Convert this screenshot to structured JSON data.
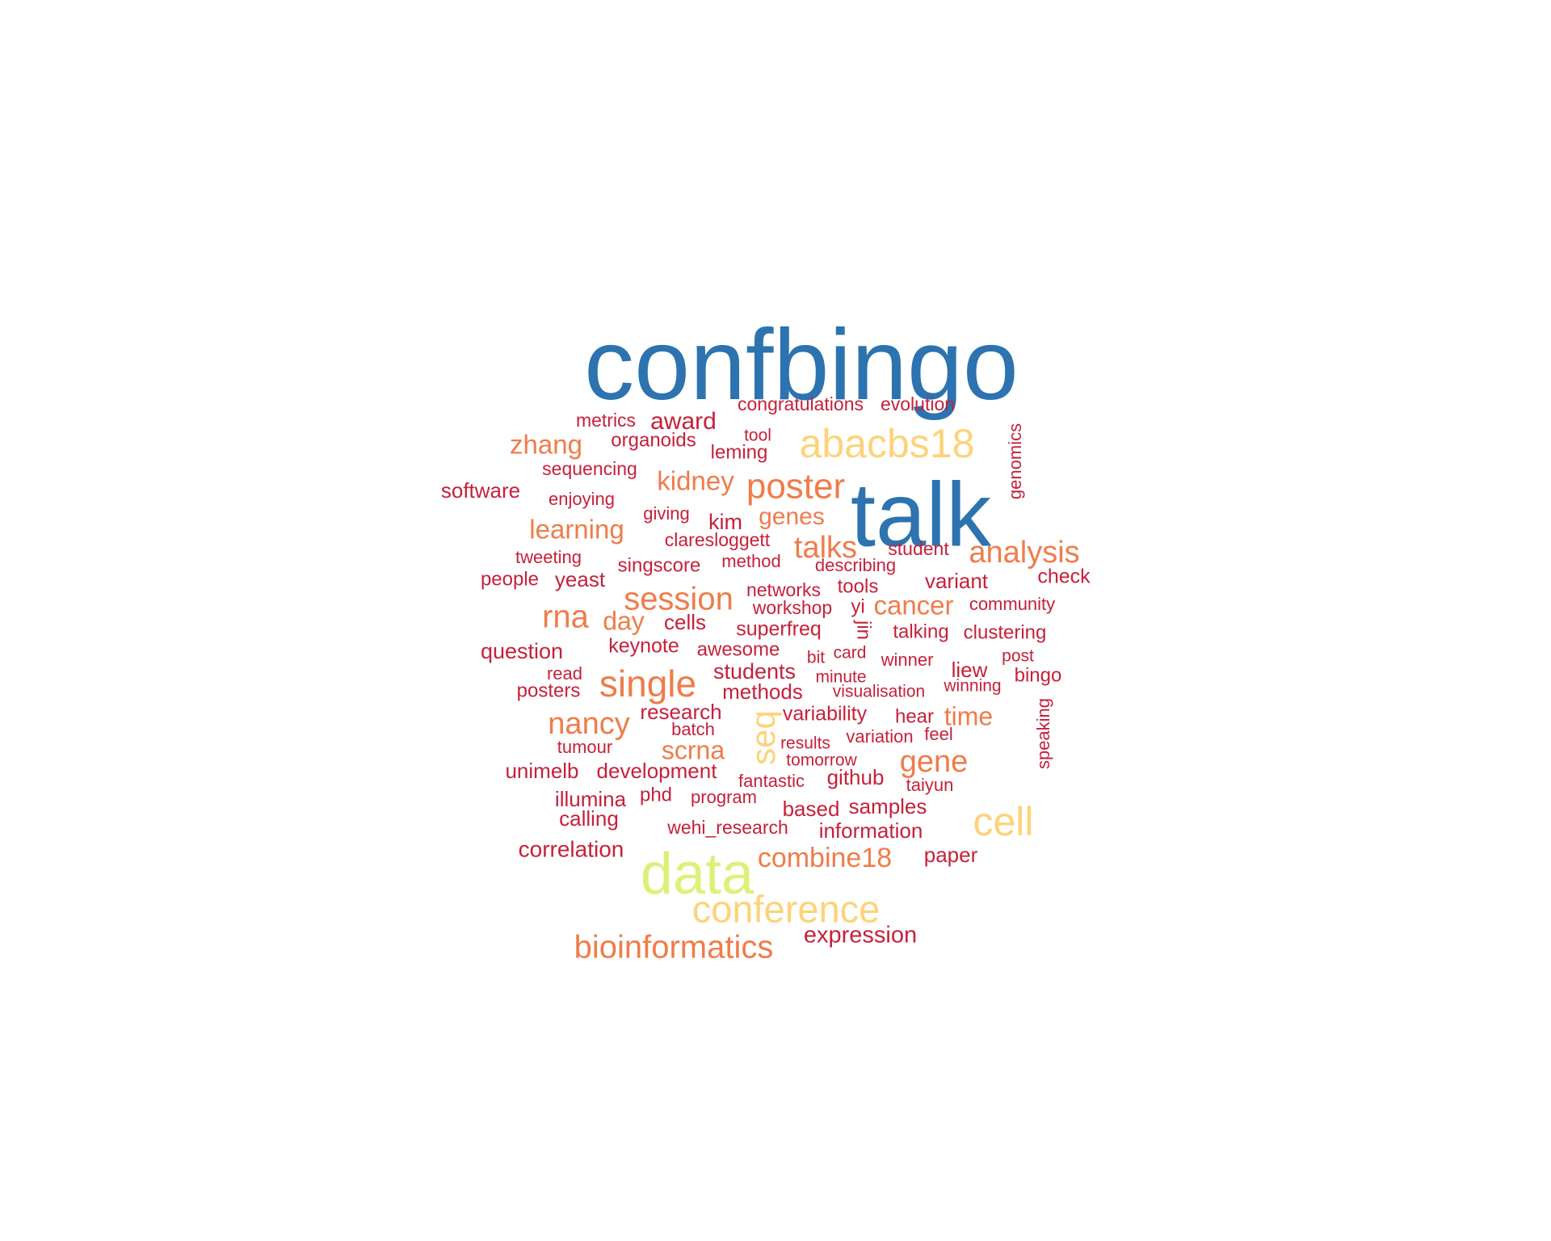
{
  "palette": {
    "blue": "#2c73b0",
    "darkred": "#c7203a",
    "orange": "#f07c4a",
    "peach": "#fdd37a",
    "lime": "#dff07a"
  },
  "words": [
    {
      "id": "confbingo",
      "text": "confbingo",
      "color": "blue"
    },
    {
      "id": "talk",
      "text": "talk",
      "color": "blue"
    },
    {
      "id": "data",
      "text": "data",
      "color": "lime"
    },
    {
      "id": "abacbs18",
      "text": "abacbs18",
      "color": "peach"
    },
    {
      "id": "conference",
      "text": "conference",
      "color": "peach"
    },
    {
      "id": "cell",
      "text": "cell",
      "color": "peach"
    },
    {
      "id": "seq",
      "text": "seq",
      "color": "peach"
    },
    {
      "id": "poster",
      "text": "poster",
      "color": "orange"
    },
    {
      "id": "single",
      "text": "single",
      "color": "orange"
    },
    {
      "id": "session",
      "text": "session",
      "color": "orange"
    },
    {
      "id": "analysis",
      "text": "analysis",
      "color": "orange"
    },
    {
      "id": "bioinformatics",
      "text": "bioinformatics",
      "color": "orange"
    },
    {
      "id": "rna",
      "text": "rna",
      "color": "orange"
    },
    {
      "id": "nancy",
      "text": "nancy",
      "color": "orange"
    },
    {
      "id": "gene",
      "text": "gene",
      "color": "orange"
    },
    {
      "id": "combine18",
      "text": "combine18",
      "color": "orange"
    },
    {
      "id": "talks",
      "text": "talks",
      "color": "orange"
    },
    {
      "id": "kidney",
      "text": "kidney",
      "color": "orange"
    },
    {
      "id": "zhang",
      "text": "zhang",
      "color": "orange"
    },
    {
      "id": "learning",
      "text": "learning",
      "color": "orange"
    },
    {
      "id": "cancer",
      "text": "cancer",
      "color": "orange"
    },
    {
      "id": "genes",
      "text": "genes",
      "color": "orange"
    },
    {
      "id": "day",
      "text": "day",
      "color": "orange"
    },
    {
      "id": "scrna",
      "text": "scrna",
      "color": "orange"
    },
    {
      "id": "time",
      "text": "time",
      "color": "orange"
    },
    {
      "id": "award",
      "text": "award",
      "color": "darkred"
    },
    {
      "id": "metrics",
      "text": "metrics",
      "color": "darkred"
    },
    {
      "id": "congratulations",
      "text": "congratulations",
      "color": "darkred"
    },
    {
      "id": "evolution",
      "text": "evolution",
      "color": "darkred"
    },
    {
      "id": "organoids",
      "text": "organoids",
      "color": "darkred"
    },
    {
      "id": "tool",
      "text": "tool",
      "color": "darkred"
    },
    {
      "id": "leming",
      "text": "leming",
      "color": "darkred"
    },
    {
      "id": "genomics",
      "text": "genomics",
      "color": "darkred"
    },
    {
      "id": "sequencing",
      "text": "sequencing",
      "color": "darkred"
    },
    {
      "id": "software",
      "text": "software",
      "color": "darkred"
    },
    {
      "id": "enjoying",
      "text": "enjoying",
      "color": "darkred"
    },
    {
      "id": "giving",
      "text": "giving",
      "color": "darkred"
    },
    {
      "id": "kim",
      "text": "kim",
      "color": "darkred"
    },
    {
      "id": "claresloggett",
      "text": "claresloggett",
      "color": "darkred"
    },
    {
      "id": "student",
      "text": "student",
      "color": "darkred"
    },
    {
      "id": "tweeting",
      "text": "tweeting",
      "color": "darkred"
    },
    {
      "id": "singscore",
      "text": "singscore",
      "color": "darkred"
    },
    {
      "id": "method",
      "text": "method",
      "color": "darkred"
    },
    {
      "id": "describing",
      "text": "describing",
      "color": "darkred"
    },
    {
      "id": "people",
      "text": "people",
      "color": "darkred"
    },
    {
      "id": "yeast",
      "text": "yeast",
      "color": "darkred"
    },
    {
      "id": "networks",
      "text": "networks",
      "color": "darkred"
    },
    {
      "id": "tools",
      "text": "tools",
      "color": "darkred"
    },
    {
      "id": "variant",
      "text": "variant",
      "color": "darkred"
    },
    {
      "id": "check",
      "text": "check",
      "color": "darkred"
    },
    {
      "id": "workshop",
      "text": "workshop",
      "color": "darkred"
    },
    {
      "id": "yi",
      "text": "yi",
      "color": "darkred"
    },
    {
      "id": "community",
      "text": "community",
      "color": "darkred"
    },
    {
      "id": "cells",
      "text": "cells",
      "color": "darkred"
    },
    {
      "id": "superfreq",
      "text": "superfreq",
      "color": "darkred"
    },
    {
      "id": "jin",
      "text": "jin",
      "color": "darkred"
    },
    {
      "id": "talking",
      "text": "talking",
      "color": "darkred"
    },
    {
      "id": "clustering",
      "text": "clustering",
      "color": "darkred"
    },
    {
      "id": "question",
      "text": "question",
      "color": "darkred"
    },
    {
      "id": "keynote",
      "text": "keynote",
      "color": "darkred"
    },
    {
      "id": "awesome",
      "text": "awesome",
      "color": "darkred"
    },
    {
      "id": "bit",
      "text": "bit",
      "color": "darkred"
    },
    {
      "id": "card",
      "text": "card",
      "color": "darkred"
    },
    {
      "id": "winner",
      "text": "winner",
      "color": "darkred"
    },
    {
      "id": "liew",
      "text": "liew",
      "color": "darkred"
    },
    {
      "id": "post",
      "text": "post",
      "color": "darkred"
    },
    {
      "id": "read",
      "text": "read",
      "color": "darkred"
    },
    {
      "id": "students",
      "text": "students",
      "color": "darkred"
    },
    {
      "id": "minute",
      "text": "minute",
      "color": "darkred"
    },
    {
      "id": "winning",
      "text": "winning",
      "color": "darkred"
    },
    {
      "id": "bingo",
      "text": "bingo",
      "color": "darkred"
    },
    {
      "id": "posters",
      "text": "posters",
      "color": "darkred"
    },
    {
      "id": "methods",
      "text": "methods",
      "color": "darkred"
    },
    {
      "id": "visualisation",
      "text": "visualisation",
      "color": "darkred"
    },
    {
      "id": "research",
      "text": "research",
      "color": "darkred"
    },
    {
      "id": "variability",
      "text": "variability",
      "color": "darkred"
    },
    {
      "id": "hear",
      "text": "hear",
      "color": "darkred"
    },
    {
      "id": "speaking",
      "text": "speaking",
      "color": "darkred"
    },
    {
      "id": "batch",
      "text": "batch",
      "color": "darkred"
    },
    {
      "id": "feel",
      "text": "feel",
      "color": "darkred"
    },
    {
      "id": "tumour",
      "text": "tumour",
      "color": "darkred"
    },
    {
      "id": "results",
      "text": "results",
      "color": "darkred"
    },
    {
      "id": "variation",
      "text": "variation",
      "color": "darkred"
    },
    {
      "id": "unimelb",
      "text": "unimelb",
      "color": "darkred"
    },
    {
      "id": "development",
      "text": "development",
      "color": "darkred"
    },
    {
      "id": "tomorrow",
      "text": "tomorrow",
      "color": "darkred"
    },
    {
      "id": "github",
      "text": "github",
      "color": "darkred"
    },
    {
      "id": "fantastic",
      "text": "fantastic",
      "color": "darkred"
    },
    {
      "id": "taiyun",
      "text": "taiyun",
      "color": "darkred"
    },
    {
      "id": "illumina",
      "text": "illumina",
      "color": "darkred"
    },
    {
      "id": "phd",
      "text": "phd",
      "color": "darkred"
    },
    {
      "id": "program",
      "text": "program",
      "color": "darkred"
    },
    {
      "id": "based",
      "text": "based",
      "color": "darkred"
    },
    {
      "id": "samples",
      "text": "samples",
      "color": "darkred"
    },
    {
      "id": "calling",
      "text": "calling",
      "color": "darkred"
    },
    {
      "id": "wehi_research",
      "text": "wehi_research",
      "color": "darkred"
    },
    {
      "id": "information",
      "text": "information",
      "color": "darkred"
    },
    {
      "id": "correlation",
      "text": "correlation",
      "color": "darkred"
    },
    {
      "id": "paper",
      "text": "paper",
      "color": "darkred"
    },
    {
      "id": "expression",
      "text": "expression",
      "color": "darkred"
    }
  ]
}
